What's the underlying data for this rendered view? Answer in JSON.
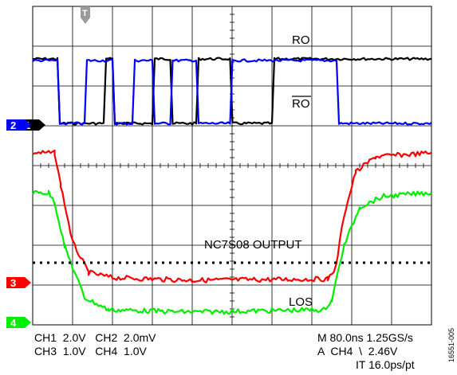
{
  "chart_data": {
    "type": "line",
    "title": "",
    "grid": true,
    "time_axis": {
      "divisions": 10,
      "per_division": "80.0ns"
    },
    "series": [
      {
        "channel": "CH1",
        "color": "#000000",
        "marker_label": "1",
        "x": [
          0,
          0.62,
          0.68,
          1.78,
          1.84,
          2.0,
          2.06,
          3.0,
          3.06,
          3.45,
          3.51,
          4.1,
          4.16,
          4.95,
          5.01,
          6.0,
          6.06,
          10.0
        ],
        "y": [
          1,
          1,
          0,
          0,
          1,
          1,
          0,
          0,
          1,
          1,
          0,
          0,
          1,
          1,
          0,
          0,
          1,
          1
        ]
      },
      {
        "channel": "CH2",
        "color": "#0000ff",
        "marker_label": "2",
        "x": [
          0,
          0.62,
          0.68,
          1.3,
          1.36,
          2.0,
          2.06,
          2.5,
          2.56,
          3.0,
          3.06,
          3.45,
          3.51,
          4.1,
          4.16,
          4.95,
          5.01,
          7.62,
          7.68,
          10.0
        ],
        "y": [
          1,
          1,
          0,
          0,
          1,
          1,
          0,
          0,
          1,
          1,
          0,
          0,
          1,
          1,
          0,
          0,
          1,
          1,
          0,
          0
        ]
      },
      {
        "channel": "CH3",
        "color": "#ff0000",
        "marker_label": "3",
        "x": [
          0,
          0.55,
          0.7,
          1.0,
          1.4,
          2.0,
          4.0,
          7.4,
          7.6,
          7.8,
          8.1,
          8.6,
          10.0
        ],
        "y": [
          1,
          1,
          0.75,
          0.3,
          0.06,
          0.02,
          0,
          0.01,
          0.1,
          0.5,
          0.85,
          0.97,
          1
        ]
      },
      {
        "channel": "CH4",
        "color": "#00ee00",
        "marker_label": "4",
        "x": [
          0,
          0.4,
          0.55,
          0.8,
          1.3,
          1.9,
          4.0,
          7.3,
          7.5,
          7.8,
          8.2,
          8.8,
          10.0
        ],
        "y": [
          1,
          1,
          0.92,
          0.55,
          0.12,
          0.02,
          0,
          0.02,
          0.1,
          0.55,
          0.88,
          0.97,
          1
        ]
      },
      {
        "channel": "THRESH",
        "color": "#000000",
        "style": "dotted",
        "x": [
          0,
          10
        ],
        "y": [
          0.5,
          0.5
        ]
      }
    ],
    "annotations": {
      "ro": "RO",
      "ro_bar": "RO",
      "nc7s08": "NC7S08 OUTPUT",
      "los": "LOS"
    },
    "trigger_marker": "T"
  },
  "readouts": {
    "row1": "CH1  2.0V   CH2  2.0mV",
    "row2": "CH3  1.0V   CH4  1.0V",
    "right1": "M 80.0ns 1.25GS/s",
    "right2": "A  CH4  \\  2.46V",
    "right3": "IT 16.0ps/pt"
  },
  "figure_id": "16551-005"
}
